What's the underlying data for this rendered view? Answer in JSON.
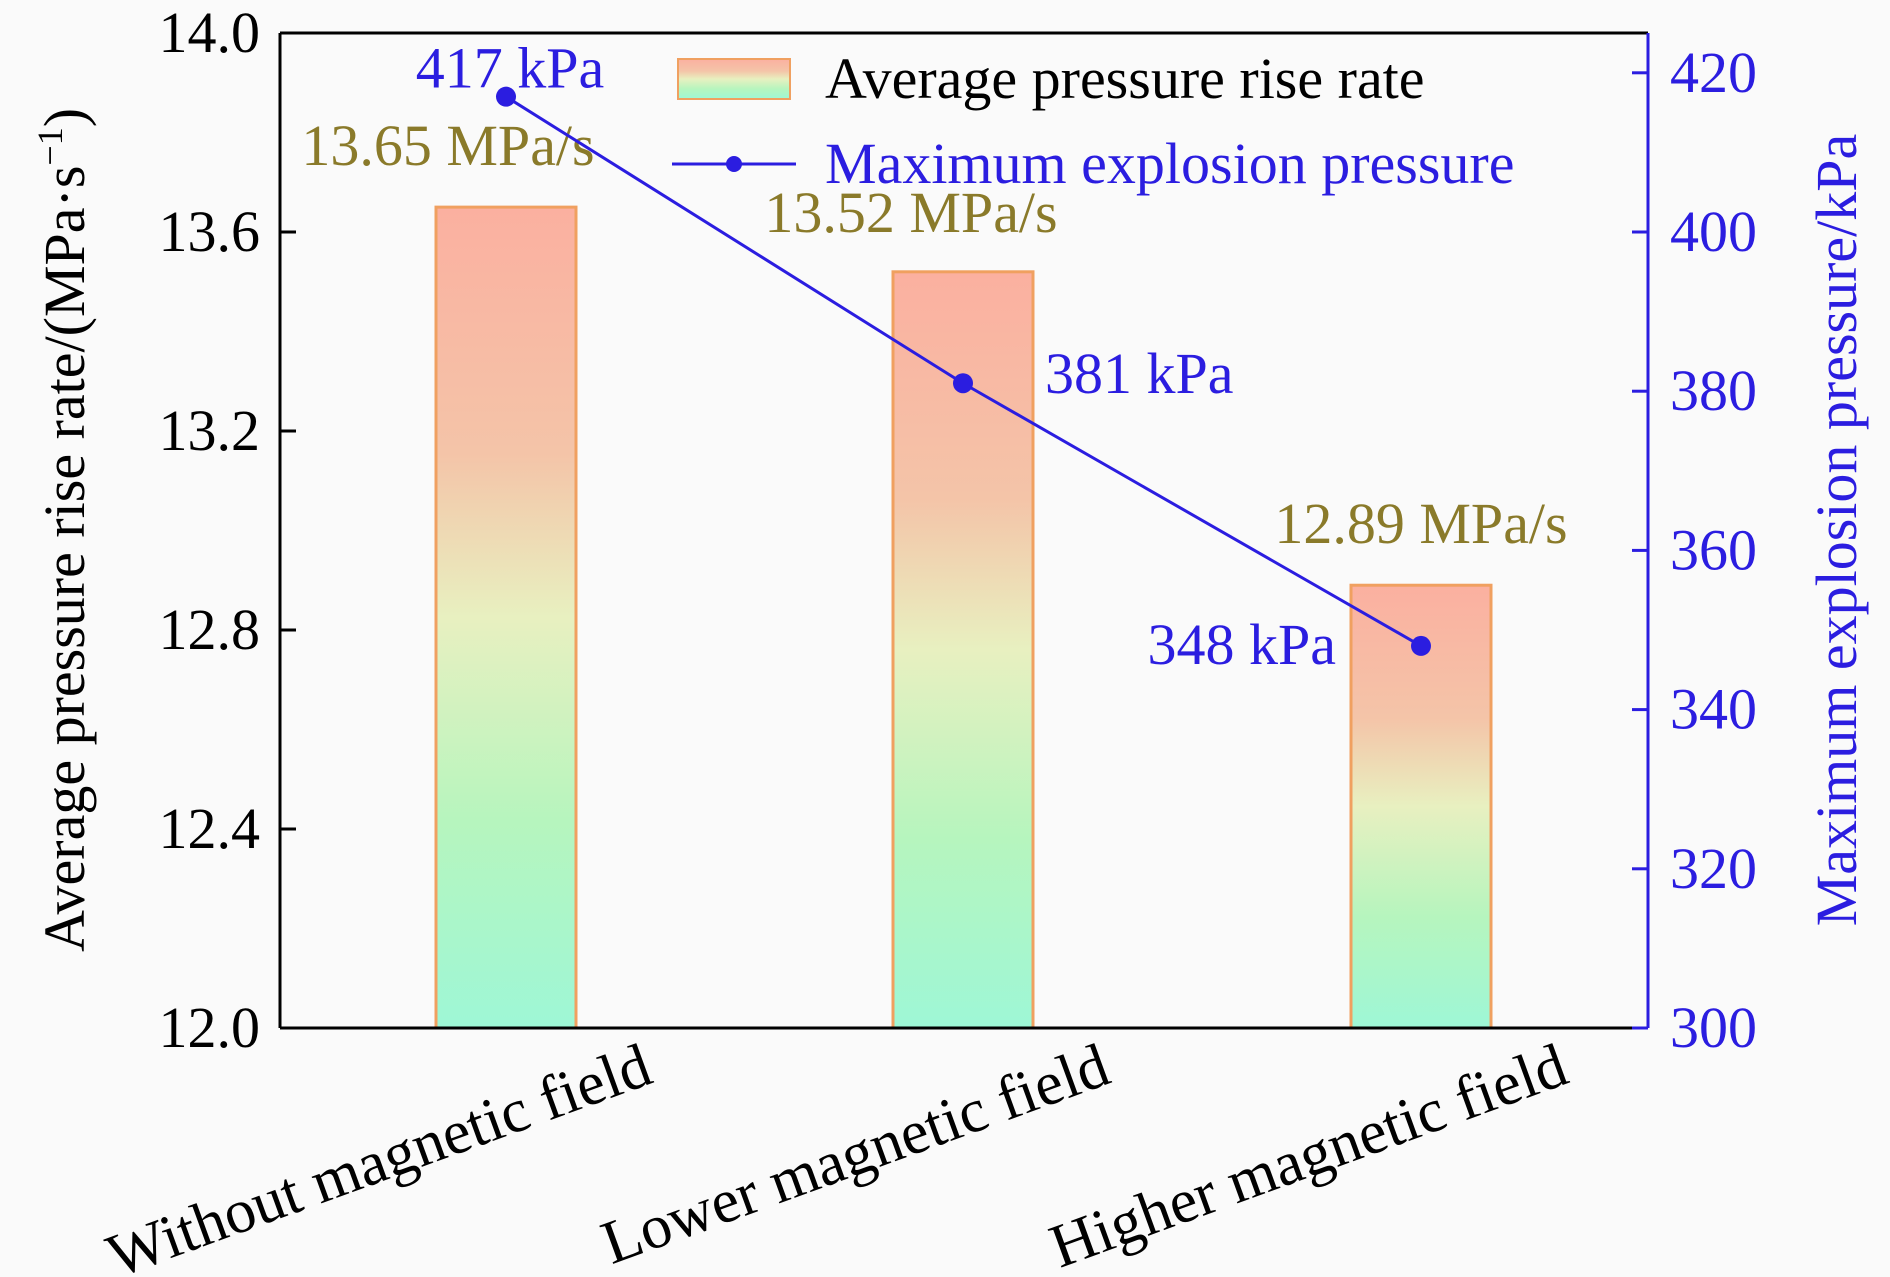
{
  "chart_data": {
    "type": "bar",
    "categories": [
      "Without magnetic field",
      "Lower magnetic field",
      "Higher magnetic field"
    ],
    "series": [
      {
        "name": "Average pressure rise rate",
        "axis": "left",
        "kind": "bar",
        "values": [
          13.65,
          13.52,
          12.89
        ],
        "labels": [
          "13.65 MPa/s",
          "13.52 MPa/s",
          "12.89 MPa/s"
        ]
      },
      {
        "name": "Maximum explosion pressure",
        "axis": "right",
        "kind": "line",
        "values": [
          417,
          381,
          348
        ],
        "labels": [
          "417 kPa",
          "381 kPa",
          "348 kPa"
        ]
      }
    ],
    "y_left": {
      "label_main": "Average pressure rise rate/(MPa·s",
      "label_sup": "−1",
      "label_end": ")",
      "ylim": [
        12.0,
        14.0
      ],
      "ticks": [
        "12.0",
        "12.4",
        "12.8",
        "13.2",
        "13.6",
        "14.0"
      ]
    },
    "y_right": {
      "label": "Maximum explosion pressure/kPa",
      "ylim": [
        300,
        425
      ],
      "ticks": [
        "300",
        "320",
        "340",
        "360",
        "380",
        "400",
        "420"
      ]
    },
    "legend_position": "top-right",
    "colors": {
      "line": "#2b1de0",
      "right_axis": "#2b1de0",
      "bar_label": "#8a7a2a",
      "bar_edge": "#f0a060",
      "bar_top": "#fbb3a3",
      "bar_bottom": "#9ef5cf"
    }
  }
}
